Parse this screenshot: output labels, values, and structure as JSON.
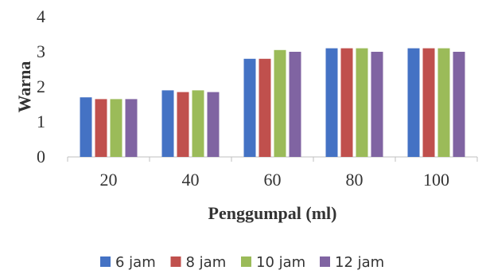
{
  "chart_data": {
    "type": "bar",
    "title": "",
    "xlabel": "Penggumpal (ml)",
    "ylabel": "Warna",
    "categories": [
      "20",
      "40",
      "60",
      "80",
      "100"
    ],
    "ylim": [
      0,
      4
    ],
    "yticks": [
      0,
      1,
      2,
      3,
      4
    ],
    "grid": false,
    "legend_position": "bottom",
    "series": [
      {
        "name": "6 jam",
        "color": "#4472C4",
        "values": [
          1.7,
          1.9,
          2.8,
          3.1,
          3.1
        ]
      },
      {
        "name": "8 jam",
        "color": "#C0504D",
        "values": [
          1.65,
          1.85,
          2.8,
          3.1,
          3.1
        ]
      },
      {
        "name": "10 jam",
        "color": "#9BBB59",
        "values": [
          1.65,
          1.9,
          3.05,
          3.1,
          3.1
        ]
      },
      {
        "name": "12 jam",
        "color": "#8064A2",
        "values": [
          1.65,
          1.85,
          3.0,
          3.0,
          3.0
        ]
      }
    ]
  }
}
